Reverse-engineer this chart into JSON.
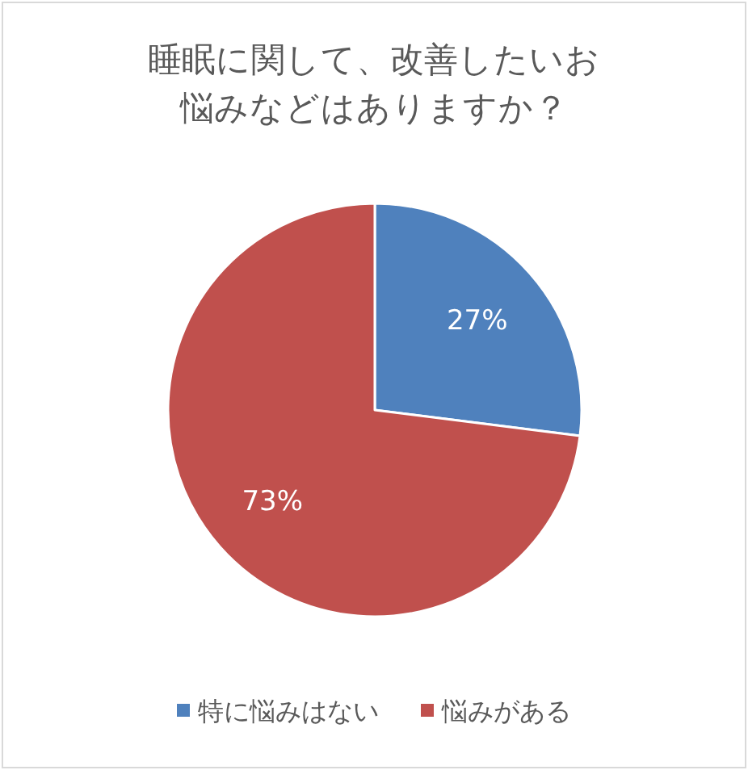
{
  "chart_data": {
    "type": "pie",
    "title": "睡眠に関して、改善したいお悩みなどはありますか？",
    "categories": [
      "特に悩みはない",
      "悩みがある"
    ],
    "values": [
      27,
      73
    ],
    "colors": [
      "#4f81bd",
      "#c0504d"
    ],
    "value_labels": [
      "27%",
      "73%"
    ],
    "legend": "bottom"
  }
}
